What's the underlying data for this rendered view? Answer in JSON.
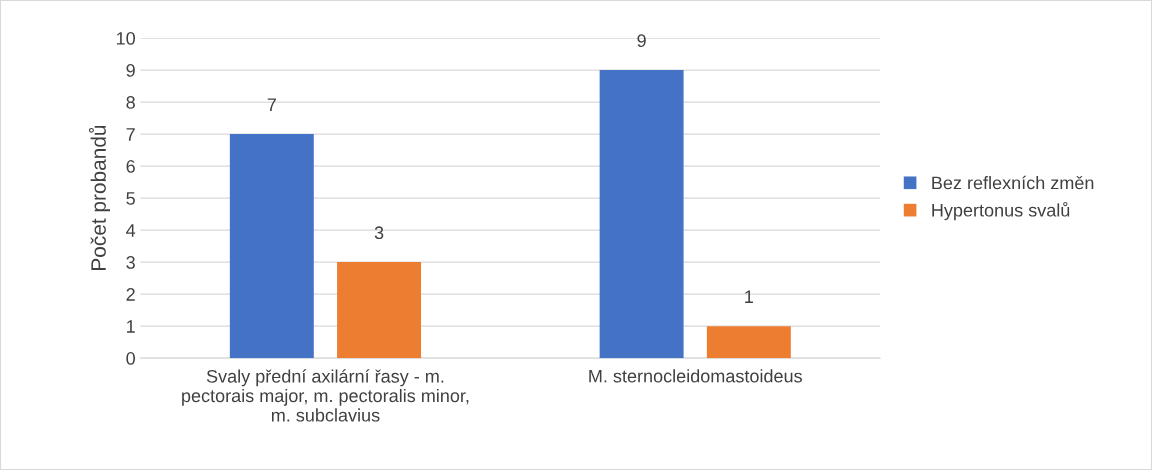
{
  "chart_data": {
    "type": "bar",
    "ylabel": "Počet probandů",
    "categories": [
      "Svaly přední axilární řasy - m.\npectorais major, m. pectoralis minor,\nm. subclavius",
      "M. sternocleidomastoideus"
    ],
    "series": [
      {
        "name": "Bez reflexních změn",
        "color": "#4472c4",
        "values": [
          7,
          9
        ]
      },
      {
        "name": "Hypertonus svalů",
        "color": "#ed7d31",
        "values": [
          3,
          1
        ]
      }
    ],
    "ylim": [
      0,
      10
    ],
    "yticks": [
      0,
      1,
      2,
      3,
      4,
      5,
      6,
      7,
      8,
      9,
      10
    ],
    "grid": "y",
    "legend": "right",
    "data_labels": true
  }
}
